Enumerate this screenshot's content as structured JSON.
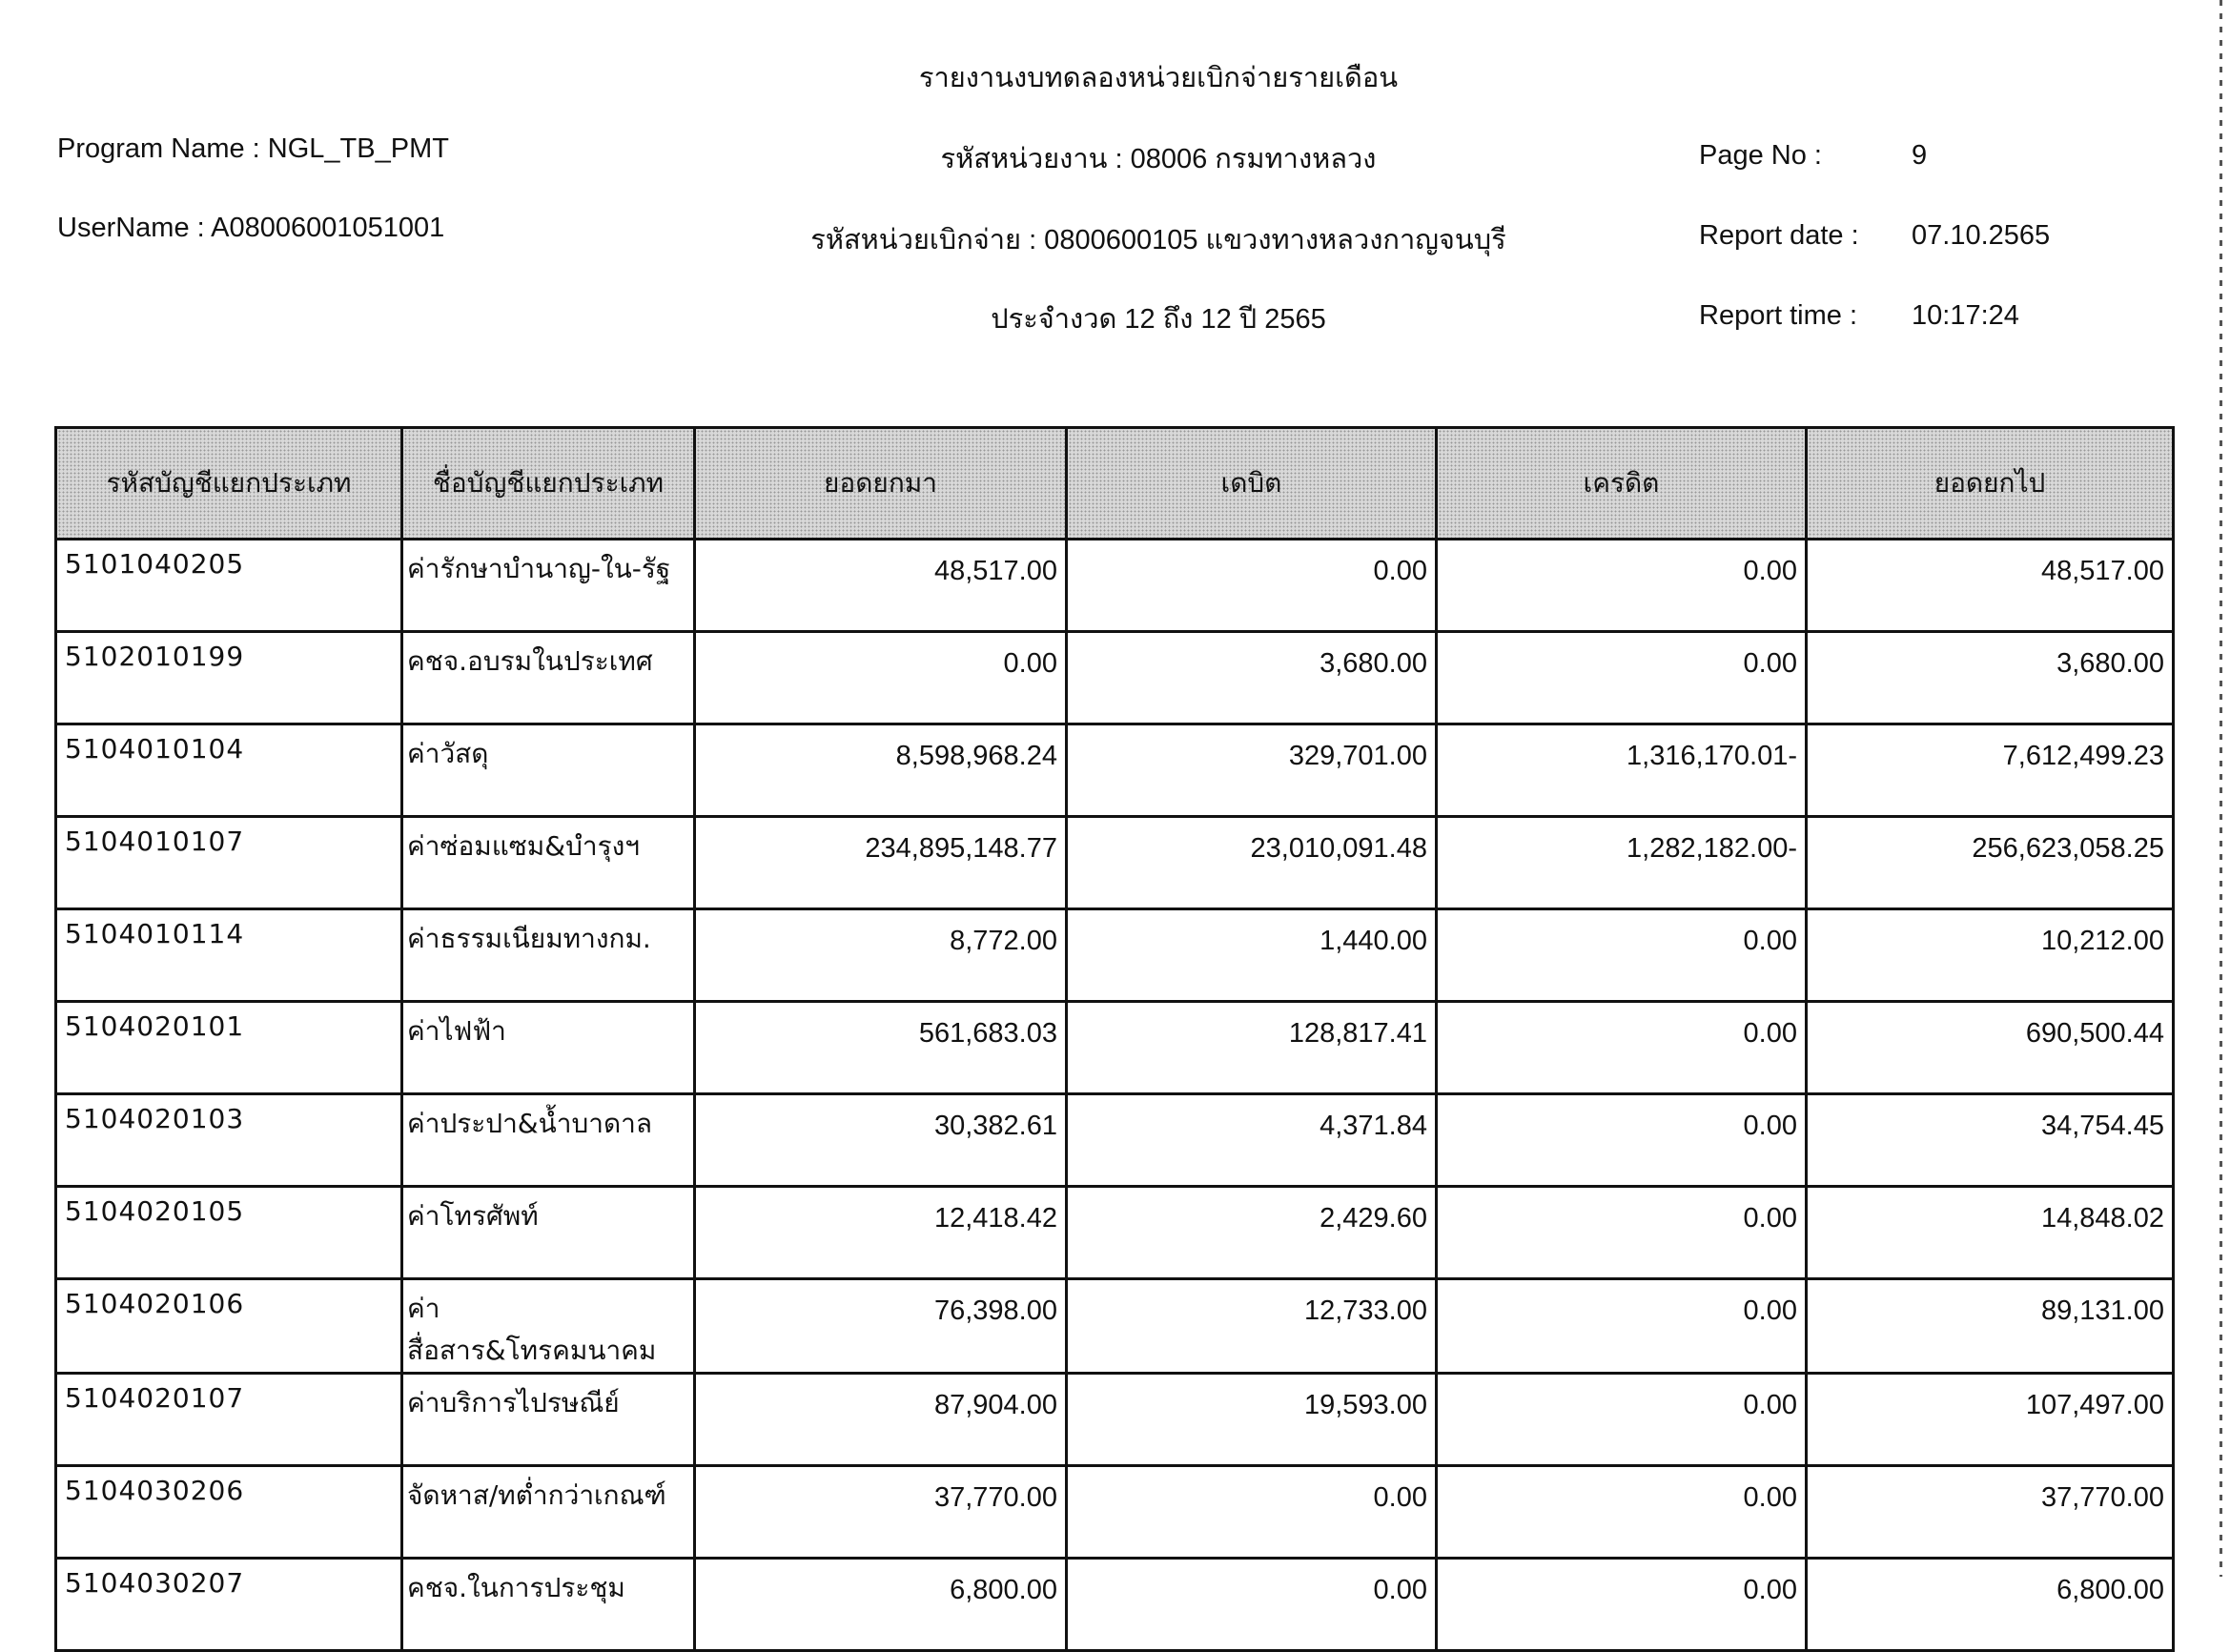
{
  "report": {
    "title": "รายงานงบทดลองหน่วยเบิกจ่ายรายเดือน",
    "program_name": "Program Name : NGL_TB_PMT",
    "user_name": "UserName : A08006001051001",
    "agency": "รหัสหน่วยงาน : 08006 กรมทางหลวง",
    "disbursing_unit": "รหัสหน่วยเบิกจ่าย : 0800600105 แขวงทางหลวงกาญจนบุรี",
    "period": "ประจำงวด 12 ถึง 12 ปี 2565",
    "page_no_label": "Page No :",
    "page_no": "9",
    "report_date_label": "Report date :",
    "report_date": "07.10.2565",
    "report_time_label": "Report time :",
    "report_time": "10:17:24"
  },
  "table": {
    "headers": [
      "รหัสบัญชีแยกประเภท",
      "ชื่อบัญชีแยกประเภท",
      "ยอดยกมา",
      "เดบิต",
      "เครดิต",
      "ยอดยกไป"
    ],
    "rows": [
      [
        "5101040205",
        "ค่ารักษาบำนาญ-ใน-รัฐ",
        "48,517.00",
        "0.00",
        "0.00",
        "48,517.00"
      ],
      [
        "5102010199",
        "คชจ.อบรมในประเทศ",
        "0.00",
        "3,680.00",
        "0.00",
        "3,680.00"
      ],
      [
        "5104010104",
        "ค่าวัสดุ",
        "8,598,968.24",
        "329,701.00",
        "1,316,170.01-",
        "7,612,499.23"
      ],
      [
        "5104010107",
        "ค่าซ่อมแซม&บำรุงฯ",
        "234,895,148.77",
        "23,010,091.48",
        "1,282,182.00-",
        "256,623,058.25"
      ],
      [
        "5104010114",
        "ค่าธรรมเนียมทางกม.",
        "8,772.00",
        "1,440.00",
        "0.00",
        "10,212.00"
      ],
      [
        "5104020101",
        "ค่าไฟฟ้า",
        "561,683.03",
        "128,817.41",
        "0.00",
        "690,500.44"
      ],
      [
        "5104020103",
        "ค่าประปา&น้ำบาดาล",
        "30,382.61",
        "4,371.84",
        "0.00",
        "34,754.45"
      ],
      [
        "5104020105",
        "ค่าโทรศัพท์",
        "12,418.42",
        "2,429.60",
        "0.00",
        "14,848.02"
      ],
      [
        "5104020106",
        "ค่าสื่อสาร&โทรคมนาคม",
        "76,398.00",
        "12,733.00",
        "0.00",
        "89,131.00"
      ],
      [
        "5104020107",
        "ค่าบริการไปรษณีย์",
        "87,904.00",
        "19,593.00",
        "0.00",
        "107,497.00"
      ],
      [
        "5104030206",
        "จัดหาส/ทต่ำกว่าเกณฑ์",
        "37,770.00",
        "0.00",
        "0.00",
        "37,770.00"
      ],
      [
        "5104030207",
        "คชจ.ในการประชุม",
        "6,800.00",
        "0.00",
        "0.00",
        "6,800.00"
      ]
    ]
  }
}
